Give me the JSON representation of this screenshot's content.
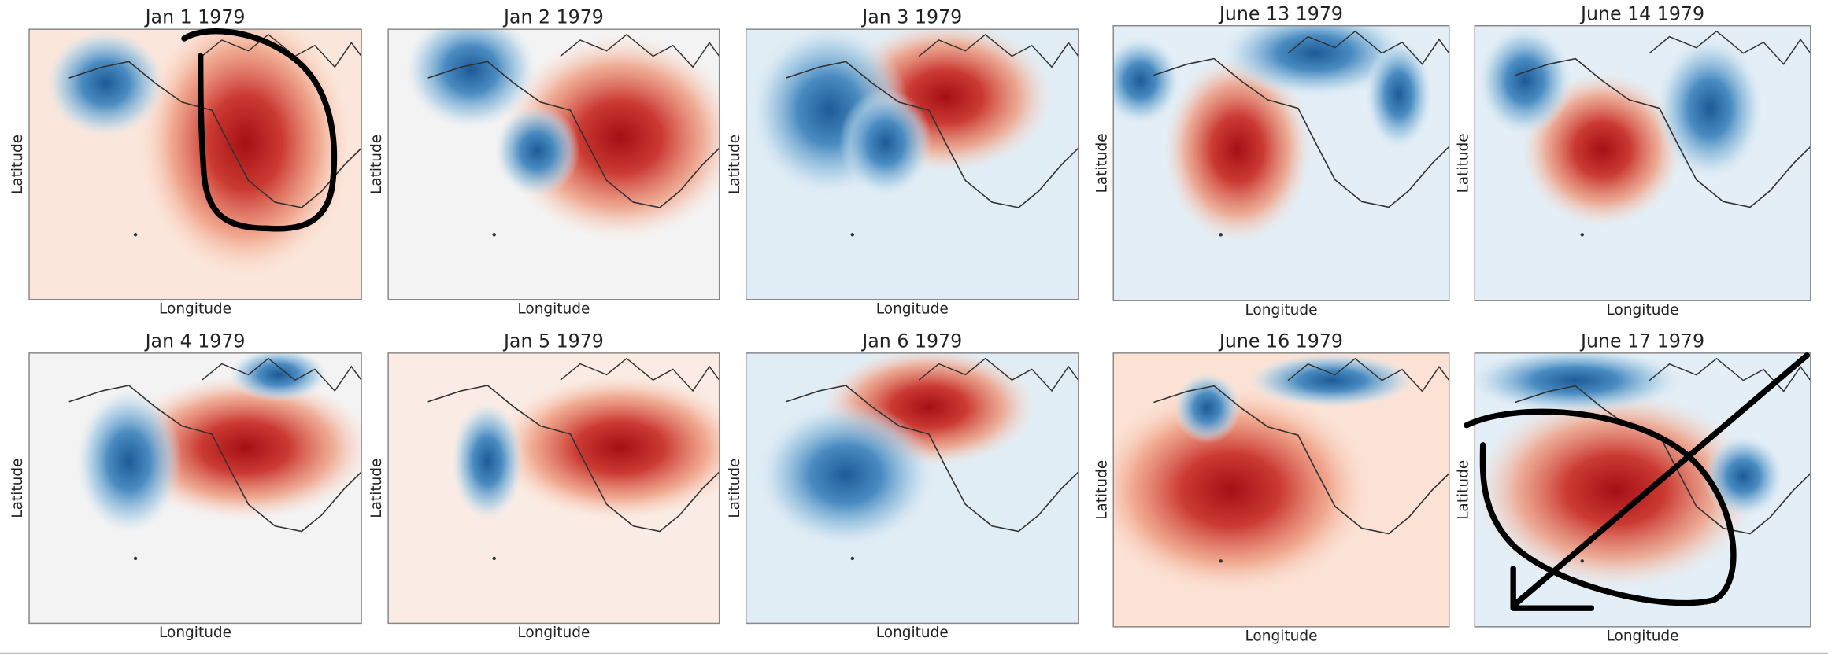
{
  "panels": [
    {
      "title": "Jan 1 1979",
      "x_label": "Longitude",
      "y_label": "Latitude"
    },
    {
      "title": "Jan 2 1979",
      "x_label": "Longitude",
      "y_label": "Latitude"
    },
    {
      "title": "Jan 3 1979",
      "x_label": "Longitude",
      "y_label": "Latitude"
    },
    {
      "title": "June 13 1979",
      "x_label": "Longitude",
      "y_label": "Latitude"
    },
    {
      "title": "June 14 1979",
      "x_label": "Longitude",
      "y_label": "Latitude"
    },
    {
      "title": "Jan 4 1979",
      "x_label": "Longitude",
      "y_label": "Latitude"
    },
    {
      "title": "Jan 5 1979",
      "x_label": "Longitude",
      "y_label": "Latitude"
    },
    {
      "title": "Jan 6 1979",
      "x_label": "Longitude",
      "y_label": "Latitude"
    },
    {
      "title": "June 16 1979",
      "x_label": "Longitude",
      "y_label": "Latitude"
    },
    {
      "title": "June 17 1979",
      "x_label": "Longitude",
      "y_label": "Latitude"
    }
  ]
}
